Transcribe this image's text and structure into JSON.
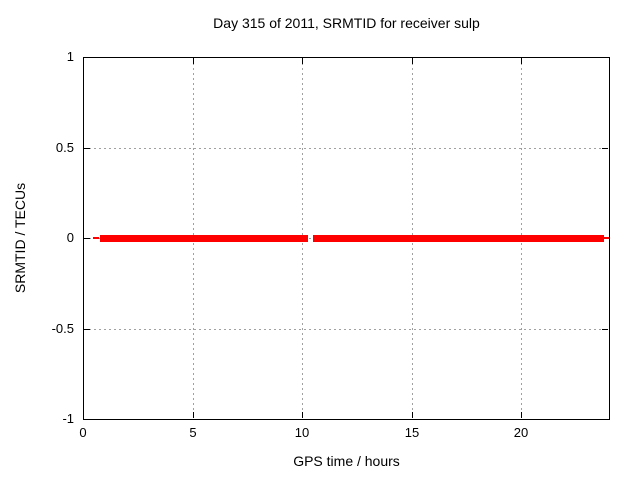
{
  "colors": {
    "background": "#ffffff",
    "border": "#000000",
    "grid": "#a0a0a0",
    "text": "#000000",
    "series_red": "#ff0000"
  },
  "chart_data": {
    "type": "line",
    "title": "Day 315 of 2011, SRMTID for receiver sulp",
    "xlabel": "GPS time / hours",
    "ylabel": "SRMTID / TECUs",
    "xlim": [
      0,
      24
    ],
    "ylim": [
      -1,
      1
    ],
    "xticks": [
      {
        "value": 0,
        "label": "0"
      },
      {
        "value": 5,
        "label": "5"
      },
      {
        "value": 10,
        "label": "10"
      },
      {
        "value": 15,
        "label": "15"
      },
      {
        "value": 20,
        "label": "20"
      }
    ],
    "yticks": [
      {
        "value": 1,
        "label": "1"
      },
      {
        "value": 0.5,
        "label": "0.5"
      },
      {
        "value": 0,
        "label": "0"
      },
      {
        "value": -0.5,
        "label": "-0.5"
      },
      {
        "value": -1,
        "label": "-1"
      }
    ],
    "grid": "dashed",
    "grid_on": true,
    "legend": "none",
    "series": [
      {
        "name": "SRMTID",
        "color": "#ff0000",
        "style": "dense-points",
        "y_value": 0,
        "segments": [
          {
            "x_start": 0.46,
            "x_end": 0.71,
            "thickness_px": 2
          },
          {
            "x_start": 0.78,
            "x_end": 10.27,
            "thickness_px": 7
          },
          {
            "x_start": 10.49,
            "x_end": 23.77,
            "thickness_px": 7
          },
          {
            "x_start": 23.77,
            "x_end": 23.99,
            "thickness_px": 2
          }
        ],
        "gaps": [
          {
            "x_start": 10.27,
            "x_end": 10.49
          }
        ]
      }
    ]
  }
}
